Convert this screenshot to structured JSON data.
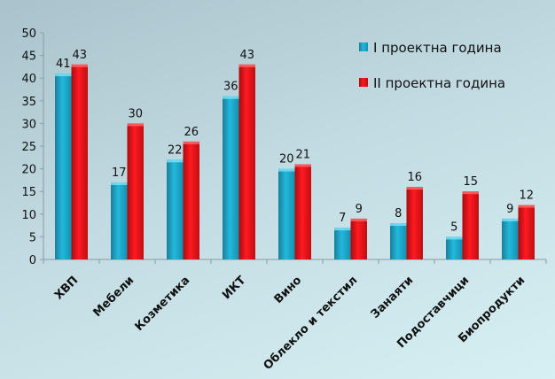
{
  "chart_data": {
    "type": "bar",
    "title": "",
    "xlabel": "",
    "ylabel": "",
    "ylim": [
      0,
      50
    ],
    "yticks": [
      0,
      5,
      10,
      15,
      20,
      25,
      30,
      35,
      40,
      45,
      50
    ],
    "categories": [
      "ХВП",
      "Мебели",
      "Козметика",
      "ИКТ",
      "Вино",
      "Облекло и текстил",
      "Занаяти",
      "Подоставчици",
      "Биопродукти"
    ],
    "series": [
      {
        "name": "I проектна година",
        "color": "#1fb3d8",
        "values": [
          41,
          17,
          22,
          36,
          20,
          7,
          8,
          5,
          9
        ]
      },
      {
        "name": "II проектна година",
        "color": "#e8141c",
        "values": [
          43,
          30,
          26,
          43,
          21,
          9,
          16,
          15,
          12
        ]
      }
    ],
    "legend_position": "top-right",
    "grid": false
  }
}
